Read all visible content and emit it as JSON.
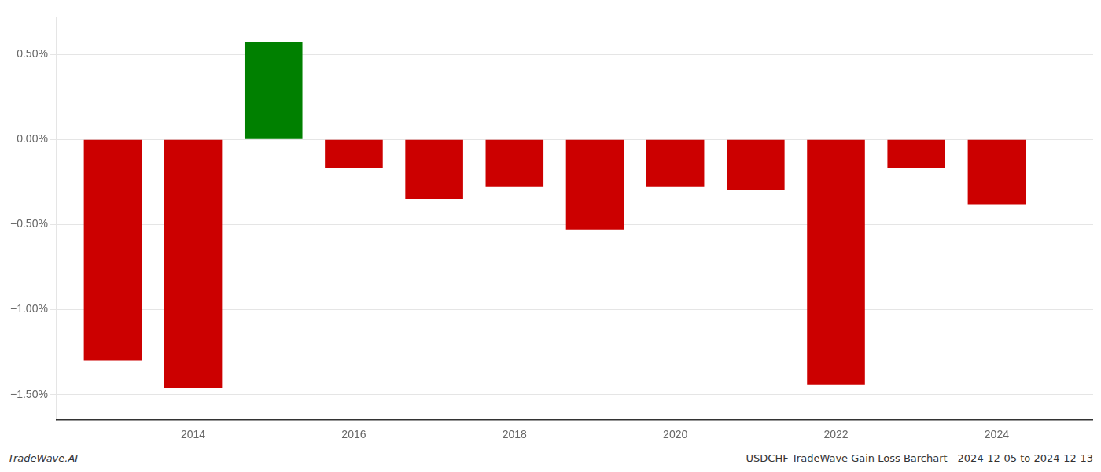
{
  "chart_data": {
    "type": "bar",
    "x": [
      2013,
      2014,
      2015,
      2016,
      2017,
      2018,
      2019,
      2020,
      2021,
      2022,
      2023,
      2024
    ],
    "values": [
      -1.3,
      -1.46,
      0.57,
      -0.17,
      -0.35,
      -0.28,
      -0.53,
      -0.28,
      -0.3,
      -1.44,
      -0.17,
      -0.38
    ],
    "colors": [
      "#cc0000",
      "#cc0000",
      "#008000",
      "#cc0000",
      "#cc0000",
      "#cc0000",
      "#cc0000",
      "#cc0000",
      "#cc0000",
      "#cc0000",
      "#cc0000",
      "#cc0000"
    ],
    "xlim": [
      2012.3,
      2025.2
    ],
    "xticks": [
      2014,
      2016,
      2018,
      2020,
      2022,
      2024
    ],
    "ylim": [
      -1.65,
      0.72
    ],
    "yticks": [
      {
        "value": -1.5,
        "label": "−1.50%"
      },
      {
        "value": -1.0,
        "label": "−1.00%"
      },
      {
        "value": -0.5,
        "label": "−0.50%"
      },
      {
        "value": 0.0,
        "label": "0.00%"
      },
      {
        "value": 0.5,
        "label": "0.50%"
      }
    ],
    "grid": "y",
    "annotations": [
      "TradeWave.AI",
      "USDCHF TradeWave Gain Loss Barchart - 2024-12-05 to 2024-12-13"
    ]
  }
}
